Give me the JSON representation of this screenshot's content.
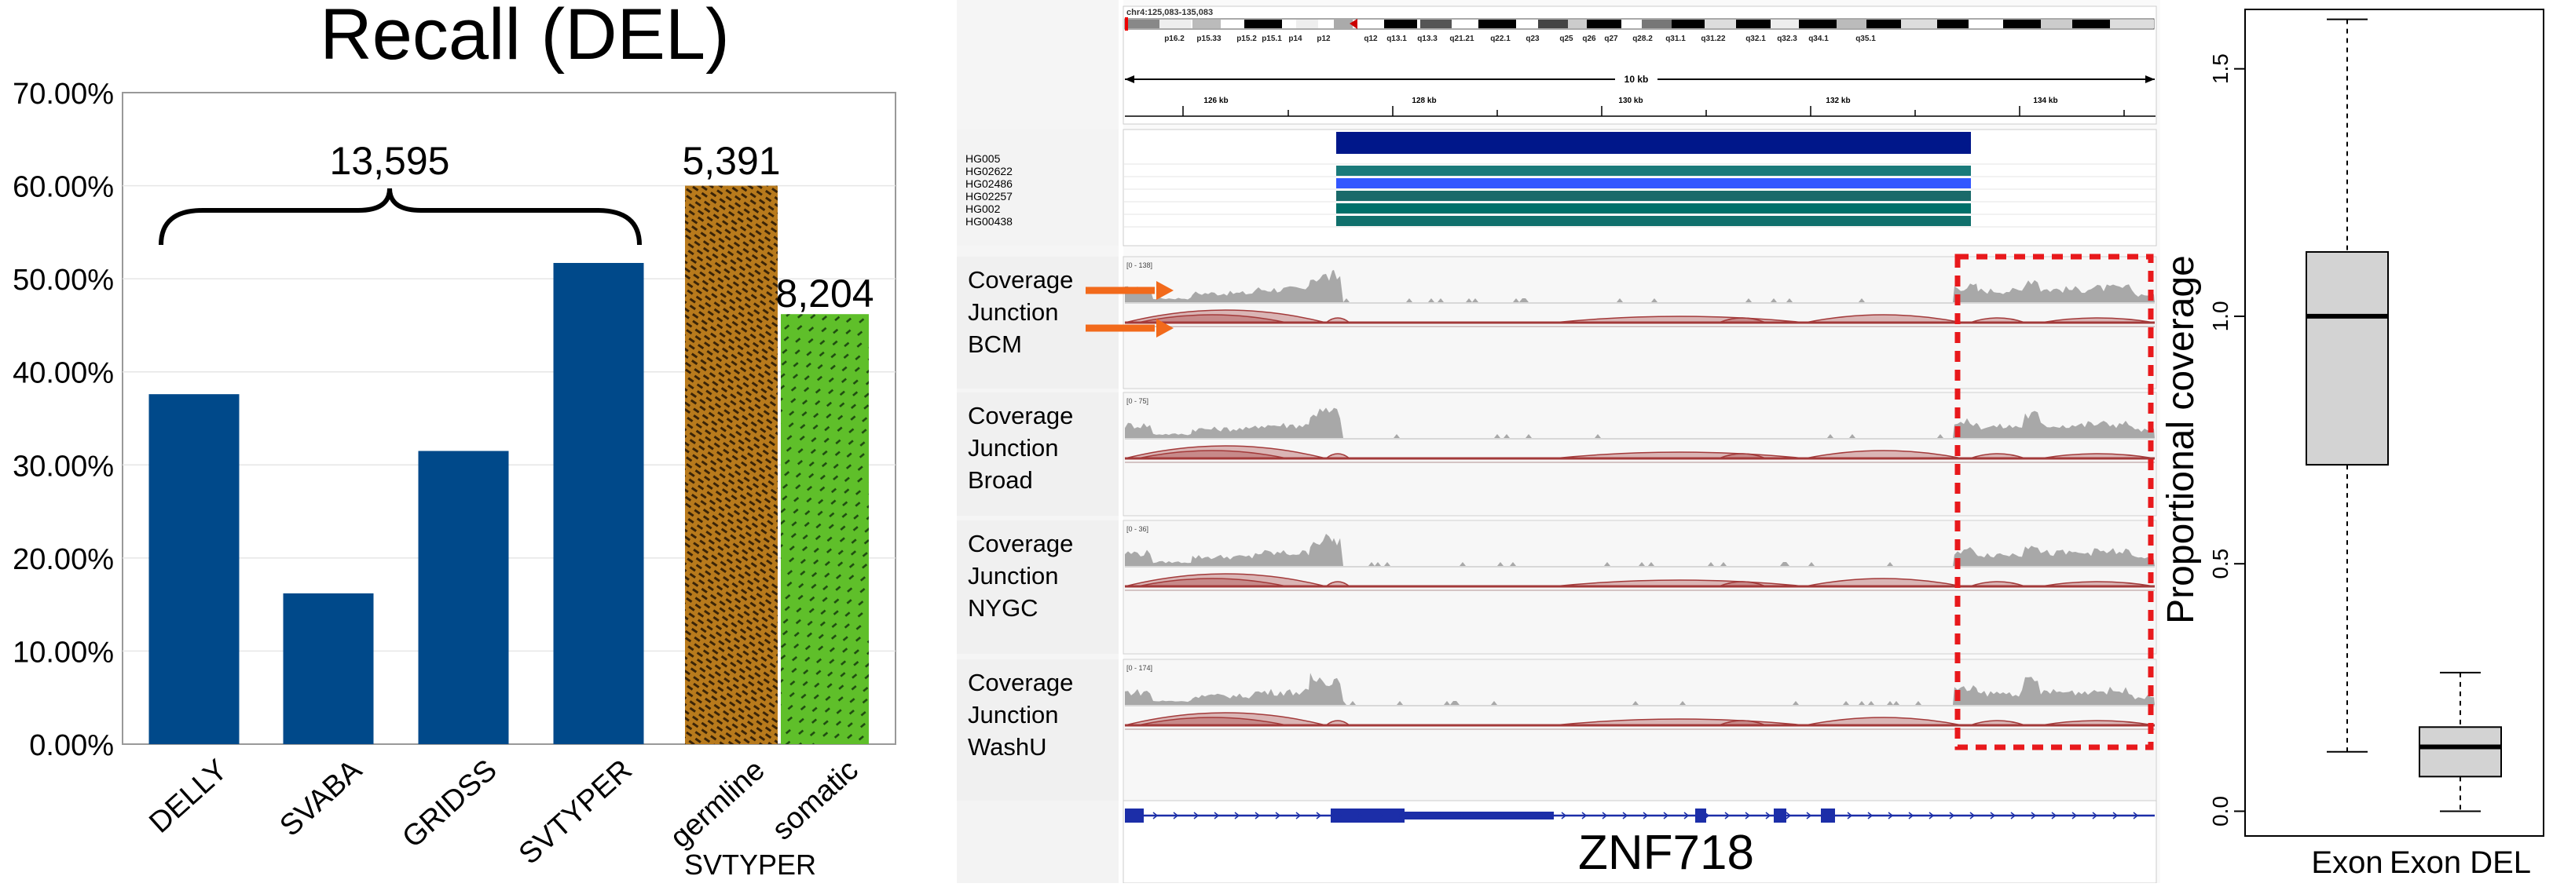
{
  "chart_data": [
    {
      "type": "bar",
      "title": "Recall (DEL)",
      "categories": [
        "DELLY",
        "SVABA",
        "GRIDSS",
        "SVTYPER",
        "germline",
        "somatic"
      ],
      "values": [
        37.6,
        16.2,
        31.5,
        51.7,
        60.0,
        46.2
      ],
      "value_format": "percent",
      "yticks": [
        "0.00%",
        "10.00%",
        "20.00%",
        "30.00%",
        "40.00%",
        "50.00%",
        "60.00%",
        "70.00%"
      ],
      "ylim": [
        0,
        70
      ],
      "group_label": "SVTYPER",
      "brace_label": "13,595",
      "data_labels": [
        {
          "category": "germline",
          "text": "5,391"
        },
        {
          "category": "somatic",
          "text": "8,204"
        }
      ],
      "colors": {
        "DELLY": "#00498a",
        "SVABA": "#00498a",
        "GRIDSS": "#00498a",
        "SVTYPER": "#00498a",
        "germline": "#b87a1c",
        "somatic": "#5fbf2a"
      }
    },
    {
      "type": "other",
      "chart_kind": "genome-browser",
      "locus": "chr4:125,083-135,083",
      "ideogram_bands": [
        "p16.2",
        "p15.33",
        "p15.2",
        "p15.1",
        "p14",
        "p12",
        "q12",
        "q13.1",
        "q13.3",
        "q21.21",
        "q22.1",
        "q23",
        "q25",
        "q26",
        "q27",
        "q28.2",
        "q31.1",
        "q31.22",
        "q32.1",
        "q32.3",
        "q34.1",
        "q35.1"
      ],
      "span_label": "10 kb",
      "ruler_ticks": [
        "126 kb",
        "128 kb",
        "130 kb",
        "132 kb",
        "134 kb"
      ],
      "samples": [
        "HG005",
        "HG02622",
        "HG02486",
        "HG02257",
        "HG002",
        "HG00438"
      ],
      "deletion_colors": [
        "#00178a",
        "#1a7a7a",
        "#3357ff",
        "#1a6a6a",
        "#00706a",
        "#10706c"
      ],
      "tracks": [
        {
          "lines": [
            "Coverage",
            "Junction",
            "BCM"
          ],
          "range": "[0 - 138]"
        },
        {
          "lines": [
            "Coverage",
            "Junction",
            "Broad"
          ],
          "range": "[0 - 75]"
        },
        {
          "lines": [
            "Coverage",
            "Junction",
            "NYGC"
          ],
          "range": "[0 - 36]"
        },
        {
          "lines": [
            "Coverage",
            "Junction",
            "WashU"
          ],
          "range": "[0 - 174]"
        }
      ],
      "gene": "ZNF718",
      "colors": {
        "highlight": "#e8191c",
        "arrow": "#f26a1b",
        "coverage": "#a8a8a8",
        "junction": "#a33a3a"
      }
    },
    {
      "type": "boxplot",
      "ylabel": "Proportional coverage",
      "categories": [
        "Exon",
        "Exon DEL"
      ],
      "ylim": [
        -0.05,
        1.62
      ],
      "yticks": [
        "0.0",
        "0.5",
        "1.0",
        "1.5"
      ],
      "boxes": [
        {
          "name": "Exon",
          "min": 0.12,
          "q1": 0.7,
          "median": 1.0,
          "q3": 1.13,
          "max": 1.6
        },
        {
          "name": "Exon DEL",
          "min": 0.0,
          "q1": 0.07,
          "median": 0.13,
          "q3": 0.17,
          "max": 0.28
        }
      ]
    }
  ]
}
